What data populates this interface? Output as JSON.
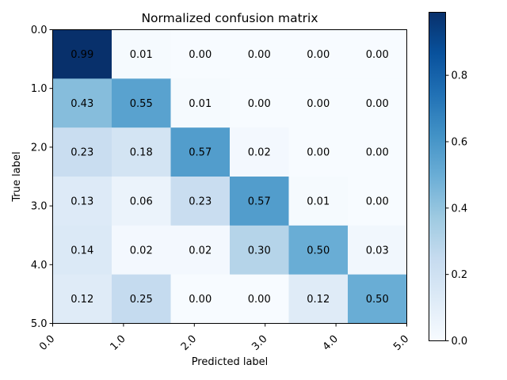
{
  "chart_data": {
    "type": "heatmap",
    "title": "Normalized confusion matrix",
    "xlabel": "Predicted label",
    "ylabel": "True label",
    "x_tick_labels": [
      "0.0",
      "1.0",
      "2.0",
      "3.0",
      "4.0",
      "5.0"
    ],
    "y_tick_labels": [
      "0.0",
      "1.0",
      "2.0",
      "3.0",
      "4.0",
      "5.0"
    ],
    "values": [
      [
        0.99,
        0.01,
        0.0,
        0.0,
        0.0,
        0.0
      ],
      [
        0.43,
        0.55,
        0.01,
        0.0,
        0.0,
        0.0
      ],
      [
        0.23,
        0.18,
        0.57,
        0.02,
        0.0,
        0.0
      ],
      [
        0.13,
        0.06,
        0.23,
        0.57,
        0.01,
        0.0
      ],
      [
        0.14,
        0.02,
        0.02,
        0.3,
        0.5,
        0.03
      ],
      [
        0.12,
        0.25,
        0.0,
        0.0,
        0.12,
        0.5
      ]
    ],
    "value_format": "2 decimals",
    "colormap": "Blues",
    "colorbar": {
      "min": 0.0,
      "max": 0.99,
      "ticks": [
        0.0,
        0.2,
        0.4,
        0.6,
        0.8
      ],
      "tick_labels": [
        "0.0",
        "0.2",
        "0.4",
        "0.6",
        "0.8"
      ]
    },
    "x_tick_rotation": 45,
    "text_color_threshold": 0.495,
    "colors": {
      "light_text": "#ffffff",
      "dark_text": "#000000",
      "axis": "#000000"
    }
  }
}
